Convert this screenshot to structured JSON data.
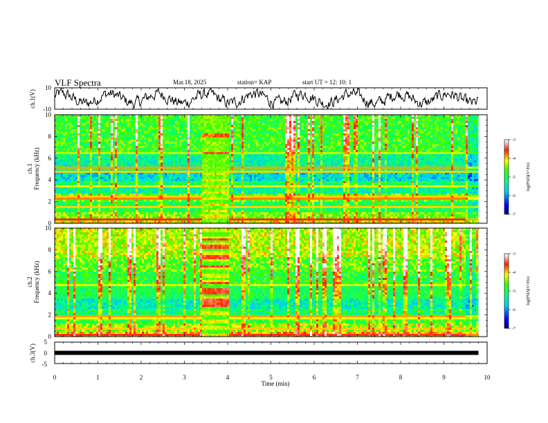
{
  "header": {
    "title": "VLF Spectra",
    "date": "Mar.18, 2025",
    "station": "station= KAP",
    "start": "start  UT  =   12: 10: 1"
  },
  "colors": {
    "axis": "#000000",
    "spectrogram_low": "#0000ff",
    "spectrogram_mid": "#00ff00",
    "spectrogram_high": "#ff0000"
  },
  "chart_data": [
    {
      "type": "line",
      "name": "ch1-waveform",
      "ylabel": "ch.1(V)",
      "ylim": [
        -10,
        10
      ],
      "yticks": [
        "10",
        "-10"
      ],
      "xlim": [
        0,
        10
      ]
    },
    {
      "type": "heatmap",
      "name": "ch1-spectrogram",
      "ylabel": [
        "ch.1",
        "Frequency  (kHz)"
      ],
      "ylim": [
        0,
        10
      ],
      "yticks": [
        "0",
        "2",
        "4",
        "6",
        "8",
        "10"
      ],
      "xlim": [
        0,
        10
      ],
      "data_end_min": 9.8,
      "burst_interval_min": [
        3.4,
        4.0
      ],
      "colorbar": {
        "label": "log(PSD)(V²/Hz)",
        "range": [
          -7,
          -3
        ],
        "ticks": [
          "-3",
          "-4",
          "-5",
          "-6",
          "-7"
        ]
      }
    },
    {
      "type": "heatmap",
      "name": "ch2-spectrogram",
      "ylabel": [
        "ch.2",
        "Frequency  (kHz)"
      ],
      "ylim": [
        0,
        10
      ],
      "yticks": [
        "0",
        "2",
        "4",
        "6",
        "8",
        "10"
      ],
      "xlim": [
        0,
        10
      ],
      "data_end_min": 9.8,
      "burst_interval_min": [
        3.4,
        4.0
      ],
      "colorbar": {
        "label": "log(PSD)(V²/Hz)",
        "range": [
          -7,
          -3
        ],
        "ticks": [
          "-3",
          "-4",
          "-5",
          "-6",
          "-7"
        ]
      }
    },
    {
      "type": "line",
      "name": "ch3-waveform",
      "ylabel": "ch.3(V)",
      "ylim": [
        -5,
        5
      ],
      "yticks": [
        "5",
        "0",
        "-5"
      ],
      "level_v": 0,
      "xlim": [
        0,
        10
      ]
    }
  ],
  "xaxis": {
    "label": "Time  (min)",
    "ticks": [
      "0",
      "1",
      "2",
      "3",
      "4",
      "5",
      "6",
      "7",
      "8",
      "9",
      "10"
    ]
  }
}
